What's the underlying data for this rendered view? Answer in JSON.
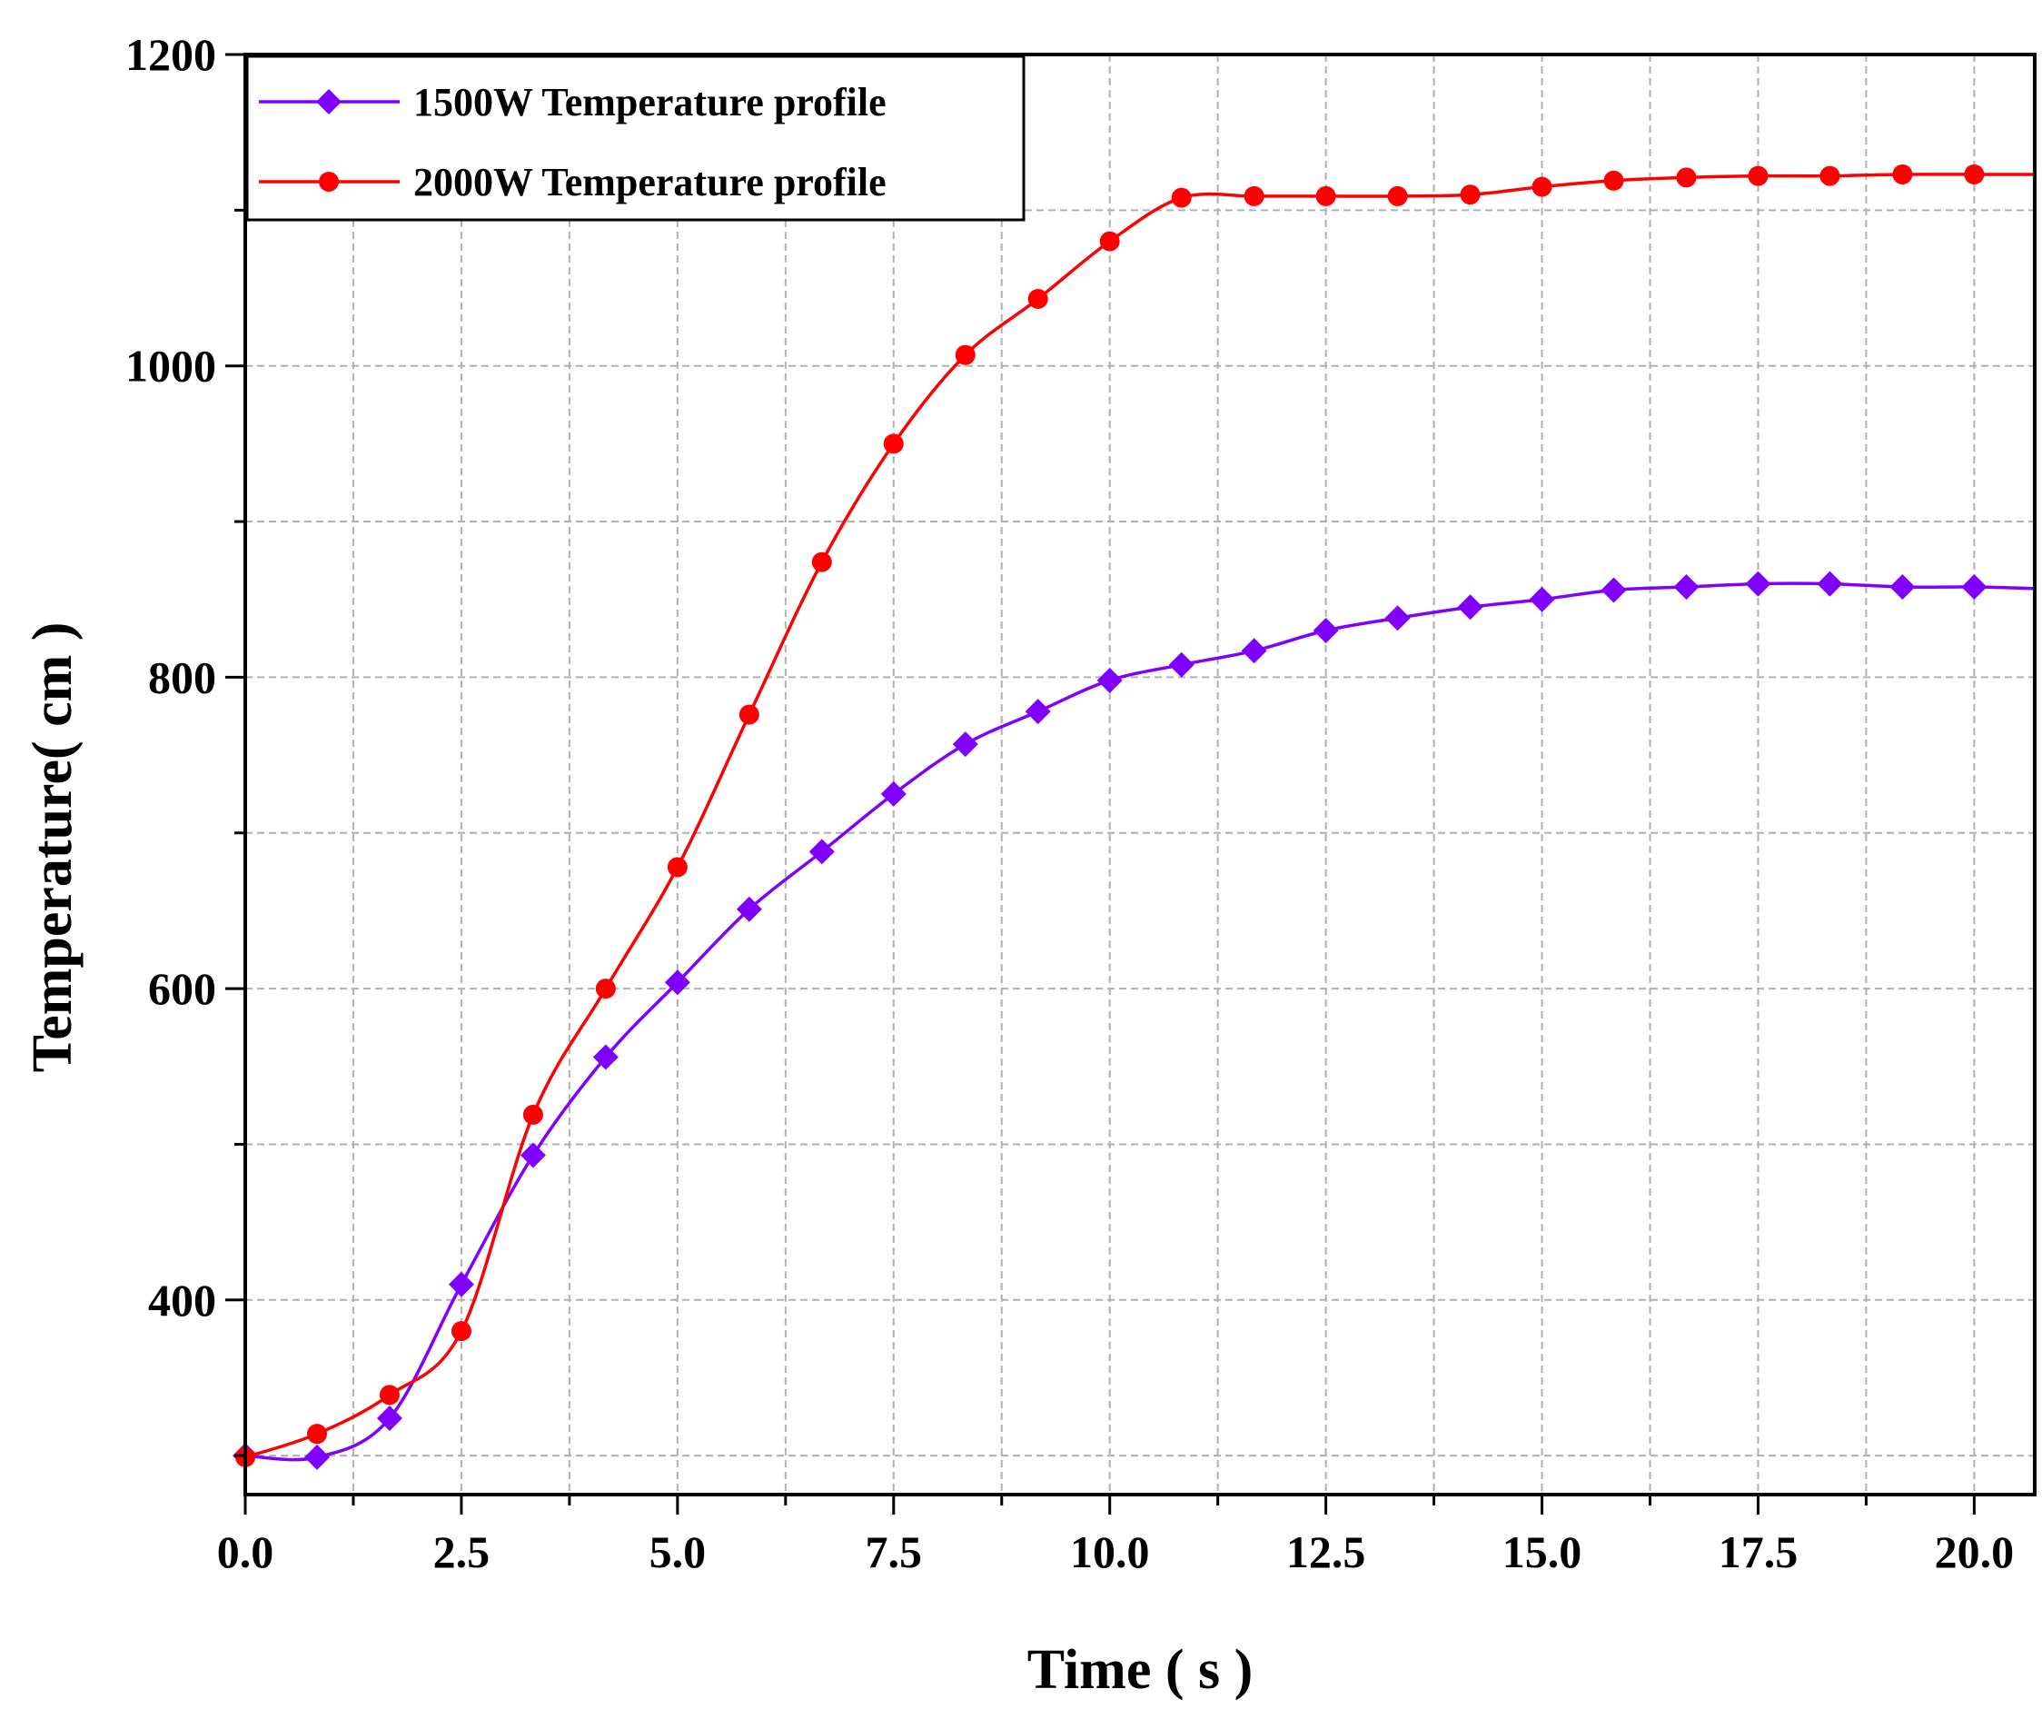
{
  "chart_data": {
    "type": "line",
    "xlabel": "Time ( s )",
    "ylabel": "Temperature( cm )",
    "xlim": [
      0,
      20.7
    ],
    "ylim": [
      275,
      1200
    ],
    "x_ticks": [
      0,
      2.5,
      5,
      7.5,
      10,
      12.5,
      15,
      17.5,
      20
    ],
    "x_tick_labels": [
      "0.0",
      "2.5",
      "5.0",
      "7.5",
      "10.0",
      "12.5",
      "15.0",
      "17.5",
      "20.0"
    ],
    "x_minor_ticks": [
      1.25,
      3.75,
      6.25,
      8.75,
      11.25,
      13.75,
      16.25,
      18.75
    ],
    "y_ticks": [
      400,
      600,
      800,
      1000,
      1200
    ],
    "y_tick_labels": [
      "400",
      "600",
      "800",
      "1000",
      "1200"
    ],
    "y_minor_ticks": [
      300,
      500,
      700,
      900,
      1100
    ],
    "grid": true,
    "legend_position": "top-left",
    "series": [
      {
        "name": "1500W Temperature profile",
        "color": "#8000ff",
        "marker": "diamond",
        "x": [
          0,
          0.83,
          1.67,
          2.5,
          3.33,
          4.17,
          5.0,
          5.83,
          6.67,
          7.5,
          8.33,
          9.17,
          10.0,
          10.83,
          11.67,
          12.5,
          13.33,
          14.17,
          15.0,
          15.83,
          16.67,
          17.5,
          18.33,
          19.17,
          20.0,
          20.7
        ],
        "y": [
          300,
          299,
          324,
          410,
          493,
          556,
          604,
          651,
          688,
          725,
          757,
          778,
          798,
          808,
          817,
          830,
          838,
          845,
          850,
          856,
          858,
          860,
          860,
          858,
          858,
          857
        ]
      },
      {
        "name": "2000W Temperature profile",
        "color": "#ff0000",
        "marker": "circle",
        "x": [
          0,
          0.83,
          1.67,
          2.5,
          3.33,
          4.17,
          5.0,
          5.83,
          6.67,
          7.5,
          8.33,
          9.17,
          10.0,
          10.83,
          11.67,
          12.5,
          13.33,
          14.17,
          15.0,
          15.83,
          16.67,
          17.5,
          18.33,
          19.17,
          20.0,
          20.7
        ],
        "y": [
          299,
          314,
          339,
          380,
          519,
          600,
          678,
          776,
          874,
          950,
          1007,
          1043,
          1080,
          1108,
          1109,
          1109,
          1109,
          1110,
          1115,
          1119,
          1121,
          1122,
          1122,
          1123,
          1123,
          1123
        ]
      }
    ]
  }
}
